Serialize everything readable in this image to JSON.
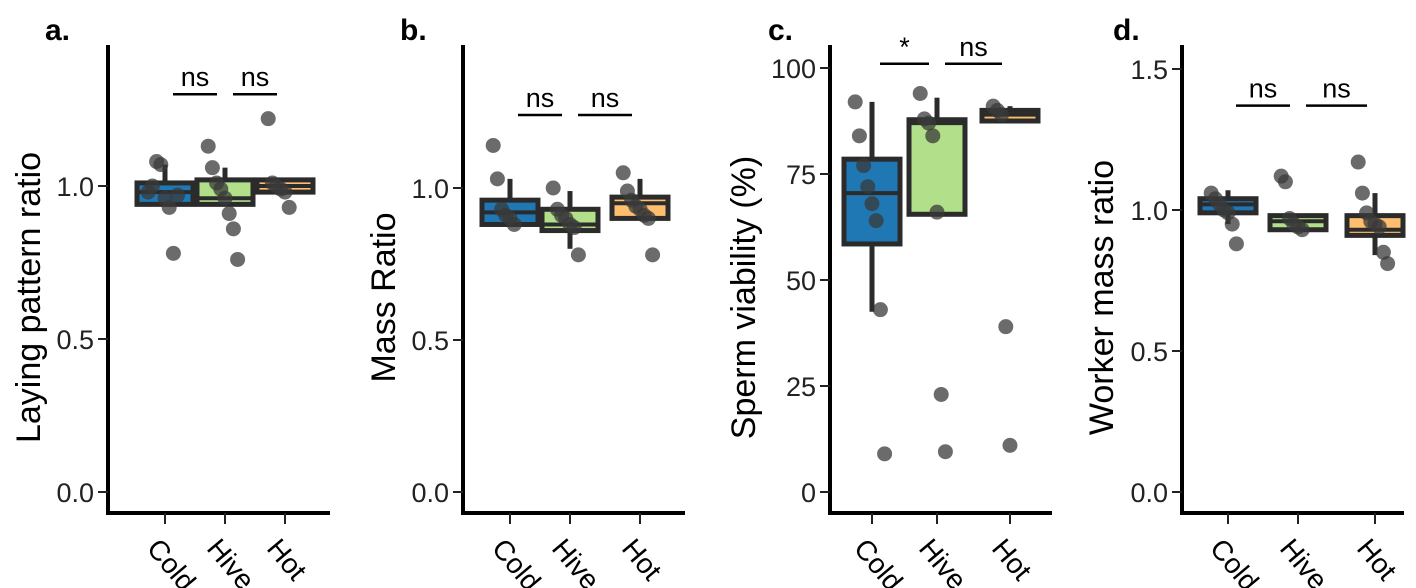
{
  "chart_data": [
    {
      "panel": "a.",
      "type": "box",
      "ylabel": "Laying pattern ratio",
      "ylim": [
        0,
        1.35
      ],
      "yticks": [
        0.0,
        0.5,
        1.0
      ],
      "ytick_labels": [
        "0.0",
        "0.5",
        "1.0"
      ],
      "categories": [
        "Cold",
        "Hive",
        "Hot"
      ],
      "boxes": [
        {
          "category": "Cold",
          "q1": 0.94,
          "median": 0.98,
          "q3": 1.01,
          "whisker_low": 0.94,
          "whisker_high": 1.07,
          "fill": "#1f78b4"
        },
        {
          "category": "Hive",
          "q1": 0.94,
          "median": 0.96,
          "q3": 1.02,
          "whisker_low": 0.94,
          "whisker_high": 1.06,
          "fill": "#b2df8a"
        },
        {
          "category": "Hot",
          "q1": 0.98,
          "median": 1.0,
          "q3": 1.02,
          "whisker_low": 0.98,
          "whisker_high": 1.02,
          "fill": "#fdbf6f"
        }
      ],
      "points": {
        "Cold": [
          0.98,
          1.0,
          1.08,
          1.07,
          0.96,
          0.93,
          0.78,
          0.97
        ],
        "Hive": [
          1.13,
          1.06,
          1.01,
          0.99,
          0.96,
          0.91,
          0.86,
          0.76
        ],
        "Hot": [
          1.22,
          1.01,
          1.0,
          0.99,
          0.98,
          0.93
        ]
      },
      "comparisons": [
        {
          "pair": [
            "Cold",
            "Hive"
          ],
          "label": "ns",
          "y": 1.3
        },
        {
          "pair": [
            "Hive",
            "Hot"
          ],
          "label": "ns",
          "y": 1.3
        }
      ]
    },
    {
      "panel": "b.",
      "type": "box",
      "ylabel": "Mass Ratio",
      "ylim": [
        0,
        1.35
      ],
      "yticks": [
        0.0,
        0.5,
        1.0
      ],
      "ytick_labels": [
        "0.0",
        "0.5",
        "1.0"
      ],
      "categories": [
        "Cold",
        "Hive",
        "Hot"
      ],
      "boxes": [
        {
          "category": "Cold",
          "q1": 0.88,
          "median": 0.92,
          "q3": 0.96,
          "whisker_low": 0.88,
          "whisker_high": 1.03,
          "fill": "#1f78b4"
        },
        {
          "category": "Hive",
          "q1": 0.86,
          "median": 0.88,
          "q3": 0.93,
          "whisker_low": 0.8,
          "whisker_high": 0.99,
          "fill": "#b2df8a"
        },
        {
          "category": "Hot",
          "q1": 0.9,
          "median": 0.95,
          "q3": 0.97,
          "whisker_low": 0.9,
          "whisker_high": 1.03,
          "fill": "#fdbf6f"
        }
      ],
      "points": {
        "Cold": [
          1.14,
          1.03,
          0.93,
          0.91,
          0.9,
          0.88
        ],
        "Hive": [
          1.0,
          0.93,
          0.91,
          0.9,
          0.88,
          0.87,
          0.78
        ],
        "Hot": [
          1.05,
          0.99,
          0.96,
          0.94,
          0.93,
          0.91,
          0.9,
          0.78
        ]
      },
      "comparisons": [
        {
          "pair": [
            "Cold",
            "Hive"
          ],
          "label": "ns",
          "y": 1.24
        },
        {
          "pair": [
            "Hive",
            "Hot"
          ],
          "label": "ns",
          "y": 1.24
        }
      ]
    },
    {
      "panel": "c.",
      "type": "box",
      "ylabel": "Sperm viability (%)",
      "ylim": [
        0,
        105
      ],
      "yticks": [
        0,
        25,
        50,
        75,
        100
      ],
      "ytick_labels": [
        "0",
        "25",
        "50",
        "75",
        "100"
      ],
      "categories": [
        "Cold",
        "Hive",
        "Hot"
      ],
      "boxes": [
        {
          "category": "Cold",
          "q1": 58.5,
          "median": 70.5,
          "q3": 78.5,
          "whisker_low": 42.5,
          "whisker_high": 92,
          "fill": "#1f78b4"
        },
        {
          "category": "Hive",
          "q1": 65.5,
          "median": 87,
          "q3": 87.8,
          "whisker_low": 65.5,
          "whisker_high": 93,
          "fill": "#b2df8a"
        },
        {
          "category": "Hot",
          "q1": 87.5,
          "median": 89,
          "q3": 90,
          "whisker_low": 87.5,
          "whisker_high": 91,
          "fill": "#fdbf6f"
        }
      ],
      "points": {
        "Cold": [
          92,
          84,
          77,
          72,
          68,
          64,
          43,
          9
        ],
        "Hive": [
          94,
          88,
          87,
          84,
          66,
          23,
          9.5
        ],
        "Hot": [
          91,
          90,
          89,
          39,
          11
        ]
      },
      "comparisons": [
        {
          "pair": [
            "Cold",
            "Hive"
          ],
          "label": "*",
          "y": 101
        },
        {
          "pair": [
            "Hive",
            "Hot"
          ],
          "label": "ns",
          "y": 101
        }
      ]
    },
    {
      "panel": "d.",
      "type": "box",
      "ylabel": "Worker mass ratio",
      "ylim": [
        0,
        1.62
      ],
      "yticks": [
        0.0,
        0.5,
        1.0,
        1.5
      ],
      "ytick_labels": [
        "0.0",
        "0.5",
        "1.0",
        "1.5"
      ],
      "categories": [
        "Cold",
        "Hive",
        "Hot"
      ],
      "boxes": [
        {
          "category": "Cold",
          "q1": 0.99,
          "median": 1.02,
          "q3": 1.04,
          "whisker_low": 0.95,
          "whisker_high": 1.07,
          "fill": "#1f78b4"
        },
        {
          "category": "Hive",
          "q1": 0.93,
          "median": 0.96,
          "q3": 0.98,
          "whisker_low": 0.93,
          "whisker_high": 0.98,
          "fill": "#b2df8a"
        },
        {
          "category": "Hot",
          "q1": 0.91,
          "median": 0.93,
          "q3": 0.98,
          "whisker_low": 0.84,
          "whisker_high": 1.06,
          "fill": "#fdbf6f"
        }
      ],
      "points": {
        "Cold": [
          1.06,
          1.04,
          1.02,
          1.0,
          0.99,
          0.95,
          0.88
        ],
        "Hive": [
          1.12,
          1.1,
          0.97,
          0.95,
          0.94,
          0.93
        ],
        "Hot": [
          1.17,
          1.06,
          0.99,
          0.96,
          0.95,
          0.94,
          0.85,
          0.81
        ]
      },
      "comparisons": [
        {
          "pair": [
            "Cold",
            "Hive"
          ],
          "label": "ns",
          "y": 1.37
        },
        {
          "pair": [
            "Hive",
            "Hot"
          ],
          "label": "ns",
          "y": 1.37
        }
      ]
    }
  ],
  "colors": {
    "box_outline": "#2b2b2b",
    "point": "#3a3a3a",
    "cold": "#1f78b4",
    "hive": "#b2df8a",
    "hot": "#fdbf6f"
  }
}
